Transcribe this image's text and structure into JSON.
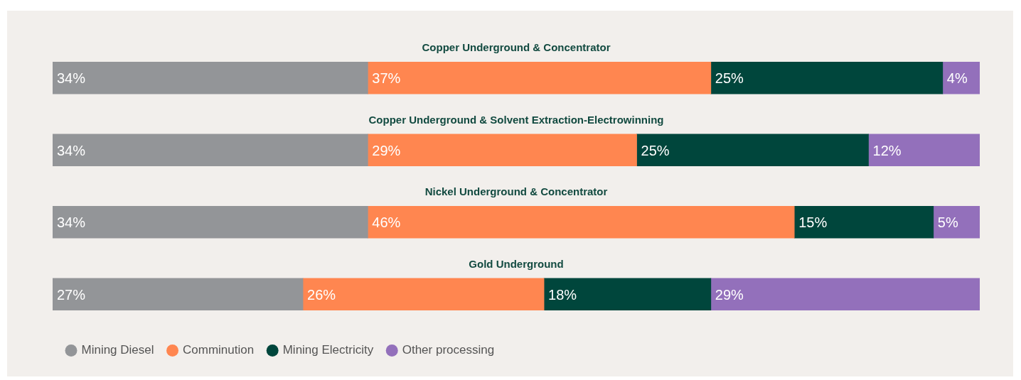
{
  "chart_data": {
    "type": "bar",
    "orientation": "horizontal",
    "stacked": true,
    "tick_labels": false,
    "legend": "bottom left",
    "categories": [
      "Copper Underground & Concentrator",
      "Copper Underground & Solvent Extraction-Electrowinning",
      "Nickel Underground & Concentrator",
      "Gold Underground"
    ],
    "series": [
      {
        "name": "Mining Diesel",
        "color": "#939598",
        "values": [
          34,
          34,
          34,
          27
        ],
        "value_labels": [
          "34%",
          "34%",
          "34%",
          "27%"
        ]
      },
      {
        "name": "Comminution",
        "color": "#ff8650",
        "values": [
          37,
          29,
          46,
          26
        ],
        "value_labels": [
          "37%",
          "29%",
          "46%",
          "26%"
        ]
      },
      {
        "name": "Mining Electricity",
        "color": "#00463c",
        "values": [
          25,
          25,
          15,
          18
        ],
        "value_labels": [
          "25%",
          "25%",
          "15%",
          "18%"
        ]
      },
      {
        "name": "Other processing",
        "color": "#9370bb",
        "values": [
          4,
          12,
          5,
          29
        ],
        "value_labels": [
          "4%",
          "12%",
          "5%",
          "29%"
        ]
      }
    ]
  }
}
